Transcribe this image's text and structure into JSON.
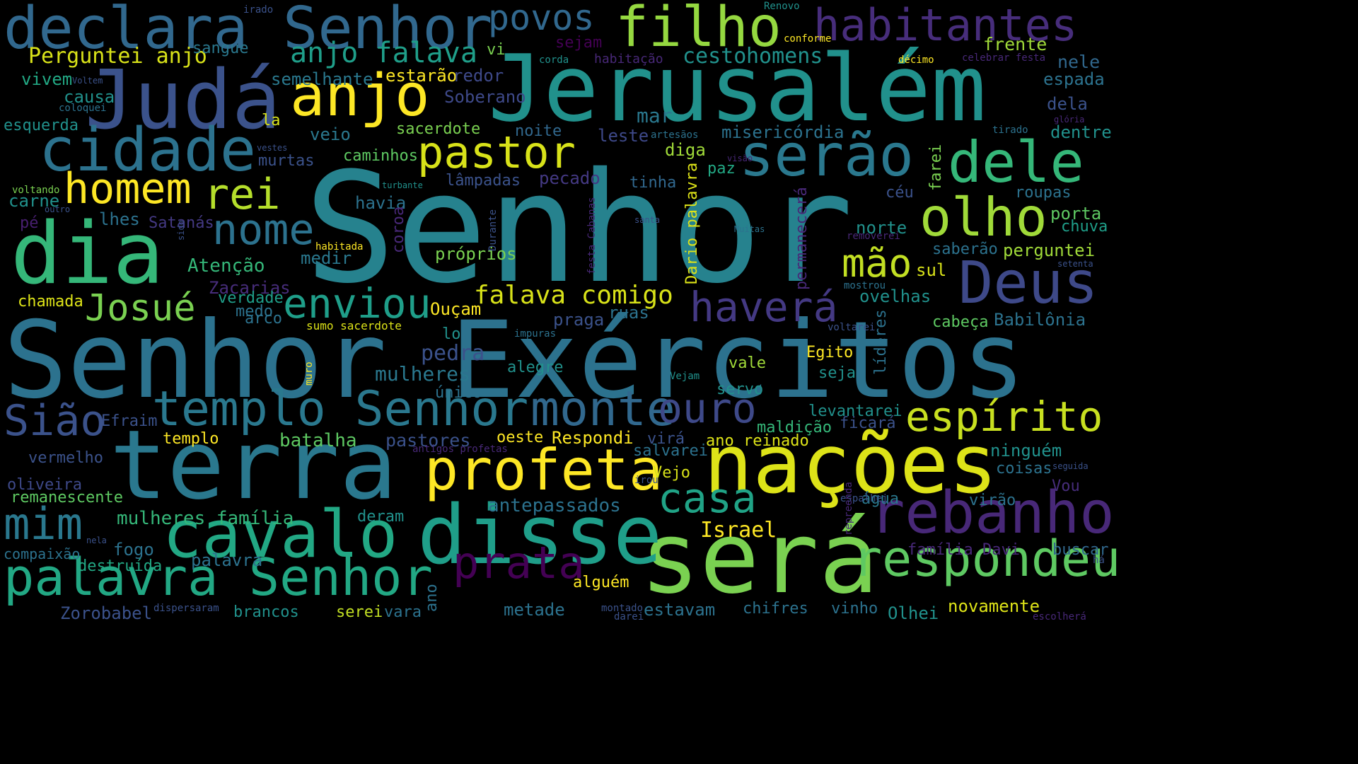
{
  "cloud": {
    "background": "#000000",
    "palette": [
      "#440154",
      "#3b528b",
      "#21918c",
      "#5ec962",
      "#fde725"
    ],
    "words": [
      {
        "text": "Senhor",
        "color": "#26828e"
      },
      {
        "text": "Senhor Exércitos",
        "color": "#2c728e"
      },
      {
        "text": "Jerusalém",
        "color": "#21918c"
      },
      {
        "text": "terra",
        "color": "#2a788e"
      },
      {
        "text": "Judá",
        "color": "#3b528b"
      },
      {
        "text": "nações",
        "color": "#dde318"
      },
      {
        "text": "será",
        "color": "#7ad151"
      },
      {
        "text": "dia",
        "color": "#35b779"
      },
      {
        "text": "disse",
        "color": "#1f9e89"
      },
      {
        "text": "declara Senhor",
        "color": "#31688e"
      },
      {
        "text": "cavalo",
        "color": "#22a884"
      },
      {
        "text": "cidade",
        "color": "#2c728e"
      },
      {
        "text": "filho",
        "color": "#95d840"
      },
      {
        "text": "anjo",
        "color": "#fde725"
      },
      {
        "text": "profeta",
        "color": "#fde725"
      },
      {
        "text": "rebanho",
        "color": "#482878"
      },
      {
        "text": "Deus",
        "color": "#3e4989"
      },
      {
        "text": "serão",
        "color": "#2a788e"
      },
      {
        "text": "dele",
        "color": "#35b779"
      },
      {
        "text": "palavra Senhor",
        "color": "#22a884"
      },
      {
        "text": "respondeu",
        "color": "#5ec962"
      },
      {
        "text": "templo Senhor",
        "color": "#2a788e"
      },
      {
        "text": "monte",
        "color": "#31688e"
      },
      {
        "text": "habitantes",
        "color": "#472d7b"
      },
      {
        "text": "olho",
        "color": "#a0da39"
      },
      {
        "text": "pastor",
        "color": "#d8e219"
      },
      {
        "text": "homem",
        "color": "#fde725"
      },
      {
        "text": "prata",
        "color": "#440154"
      },
      {
        "text": "mim",
        "color": "#2a788e"
      },
      {
        "text": "casa",
        "color": "#20a386"
      },
      {
        "text": "haverá",
        "color": "#443983"
      },
      {
        "text": "enviou",
        "color": "#1f9e89"
      },
      {
        "text": "Sião",
        "color": "#3b528b"
      },
      {
        "text": "nome",
        "color": "#2c728e"
      },
      {
        "text": "rei",
        "color": "#b5de2b"
      },
      {
        "text": "Josué",
        "color": "#7ad151"
      },
      {
        "text": "ouro",
        "color": "#3e4989"
      },
      {
        "text": "espírito",
        "color": "#c8e020"
      },
      {
        "text": "mão",
        "color": "#c2df23"
      },
      {
        "text": "povos",
        "color": "#31688e"
      },
      {
        "text": "anjo falava",
        "color": "#1f9e89"
      },
      {
        "text": "falava comigo",
        "color": "#d8e219"
      },
      {
        "text": "Perguntei anjo",
        "color": "#d8e219"
      },
      {
        "text": "Israel",
        "color": "#fde725"
      },
      {
        "text": "antepassados",
        "color": "#2c728e"
      },
      {
        "text": "batalha",
        "color": "#5ec962"
      },
      {
        "text": "pastores",
        "color": "#3b528b"
      },
      {
        "text": "mulheres",
        "color": "#2a788e"
      },
      {
        "text": "pedra",
        "color": "#3b528b"
      },
      {
        "text": "mulheres família",
        "color": "#35b779"
      },
      {
        "text": "palavra",
        "color": "#2c728e"
      },
      {
        "text": "homens",
        "color": "#21918c"
      },
      {
        "text": "cesto",
        "color": "#21918c"
      },
      {
        "text": "vi",
        "color": "#7ad151"
      },
      {
        "text": "sejam",
        "color": "#440154"
      },
      {
        "text": "sangue",
        "color": "#2a788e"
      },
      {
        "text": "frente",
        "color": "#a0da39"
      },
      {
        "text": "nele",
        "color": "#31688e"
      },
      {
        "text": "espada",
        "color": "#2c728e"
      },
      {
        "text": "vivem",
        "color": "#22a884"
      },
      {
        "text": "semelhante",
        "color": "#2a788e"
      },
      {
        "text": "estarão",
        "color": "#fde725"
      },
      {
        "text": "redor",
        "color": "#3e4989"
      },
      {
        "text": "causa",
        "color": "#21918c"
      },
      {
        "text": "Soberano",
        "color": "#3e4989"
      },
      {
        "text": "mar",
        "color": "#2a788e"
      },
      {
        "text": "misericórdia",
        "color": "#2c728e"
      },
      {
        "text": "dela",
        "color": "#3b528b"
      },
      {
        "text": "dentre",
        "color": "#21918c"
      },
      {
        "text": "esquerda",
        "color": "#21918c"
      },
      {
        "text": "la",
        "color": "#d8e219"
      },
      {
        "text": "veio",
        "color": "#2a788e"
      },
      {
        "text": "sacerdote",
        "color": "#7ad151"
      },
      {
        "text": "noite",
        "color": "#31688e"
      },
      {
        "text": "leste",
        "color": "#3e4989"
      },
      {
        "text": "diga",
        "color": "#a0da39"
      },
      {
        "text": "paz",
        "color": "#22a884"
      },
      {
        "text": "farei",
        "color": "#7ad151"
      },
      {
        "text": "murtas",
        "color": "#3b528b"
      },
      {
        "text": "caminhos",
        "color": "#5ec962"
      },
      {
        "text": "lâmpadas",
        "color": "#3b528b"
      },
      {
        "text": "pecado",
        "color": "#443983"
      },
      {
        "text": "tinha",
        "color": "#31688e"
      },
      {
        "text": "céu",
        "color": "#3b528b"
      },
      {
        "text": "roupas",
        "color": "#2c728e"
      },
      {
        "text": "carne",
        "color": "#21918c"
      },
      {
        "text": "havia",
        "color": "#2c728e"
      },
      {
        "text": "lhes",
        "color": "#2c728e"
      },
      {
        "text": "porta",
        "color": "#5ec962"
      },
      {
        "text": "chuva",
        "color": "#1f9e89"
      },
      {
        "text": "pé",
        "color": "#481f70"
      },
      {
        "text": "Satanás",
        "color": "#443983"
      },
      {
        "text": "norte",
        "color": "#21918c"
      },
      {
        "text": "saberão",
        "color": "#2c728e"
      },
      {
        "text": "perguntei",
        "color": "#a0da39"
      },
      {
        "text": "medir",
        "color": "#2a788e"
      },
      {
        "text": "próprios",
        "color": "#7ad151"
      },
      {
        "text": "sul",
        "color": "#d8e219"
      },
      {
        "text": "Atenção",
        "color": "#35b779"
      },
      {
        "text": "Zacarias",
        "color": "#472d7b"
      },
      {
        "text": "chamada",
        "color": "#dde318"
      },
      {
        "text": "verdade",
        "color": "#1f9e89"
      },
      {
        "text": "medo",
        "color": "#2c728e"
      },
      {
        "text": "arco",
        "color": "#2c728e"
      },
      {
        "text": "praga",
        "color": "#3b528b"
      },
      {
        "text": "ruas",
        "color": "#2c728e"
      },
      {
        "text": "Ouçam",
        "color": "#fde725"
      },
      {
        "text": "ovelhas",
        "color": "#21918c"
      },
      {
        "text": "cabeça",
        "color": "#5ec962"
      },
      {
        "text": "Babilônia",
        "color": "#2c728e"
      },
      {
        "text": "sumo sacerdote",
        "color": "#dde318"
      },
      {
        "text": "lo",
        "color": "#21918c"
      },
      {
        "text": "Egito",
        "color": "#fde725"
      },
      {
        "text": "vale",
        "color": "#a0da39"
      },
      {
        "text": "seja",
        "color": "#21918c"
      },
      {
        "text": "alegre",
        "color": "#21918c"
      },
      {
        "text": "único",
        "color": "#2c728e"
      },
      {
        "text": "servo",
        "color": "#21918c"
      },
      {
        "text": "Efraim",
        "color": "#3b528b"
      },
      {
        "text": "levantarei",
        "color": "#21918c"
      },
      {
        "text": "maldição",
        "color": "#35b779"
      },
      {
        "text": "ficará",
        "color": "#3b528b"
      },
      {
        "text": "templo",
        "color": "#fde725"
      },
      {
        "text": "oeste",
        "color": "#fde725"
      },
      {
        "text": "Respondi",
        "color": "#fde725"
      },
      {
        "text": "ano reinado",
        "color": "#dde318"
      },
      {
        "text": "virá",
        "color": "#3b528b"
      },
      {
        "text": "salvarei",
        "color": "#2c728e"
      },
      {
        "text": "ninguém",
        "color": "#21918c"
      },
      {
        "text": "coisas",
        "color": "#2c728e"
      },
      {
        "text": "vermelho",
        "color": "#3b528b"
      },
      {
        "text": "oliveira",
        "color": "#3e4989"
      },
      {
        "text": "remanescente",
        "color": "#5ec962"
      },
      {
        "text": "Vejo",
        "color": "#d8e219"
      },
      {
        "text": "água",
        "color": "#2a788e"
      },
      {
        "text": "virão",
        "color": "#2c728e"
      },
      {
        "text": "Vou",
        "color": "#472d7b"
      },
      {
        "text": "compaixão",
        "color": "#2c728e"
      },
      {
        "text": "fogo",
        "color": "#2c728e"
      },
      {
        "text": "deram",
        "color": "#21918c"
      },
      {
        "text": "destruída",
        "color": "#22a884"
      },
      {
        "text": "Zorobabel",
        "color": "#3b528b"
      },
      {
        "text": "brancos",
        "color": "#21918c"
      },
      {
        "text": "serei",
        "color": "#c2df23"
      },
      {
        "text": "vara",
        "color": "#2c728e"
      },
      {
        "text": "metade",
        "color": "#2c728e"
      },
      {
        "text": "alguém",
        "color": "#fde725"
      },
      {
        "text": "estavam",
        "color": "#2c728e"
      },
      {
        "text": "chifres",
        "color": "#2c728e"
      },
      {
        "text": "vinho",
        "color": "#2c728e"
      },
      {
        "text": "Olhei",
        "color": "#21918c"
      },
      {
        "text": "novamente",
        "color": "#dde318"
      },
      {
        "text": "buscar",
        "color": "#31688e"
      },
      {
        "text": "família Davi",
        "color": "#482878"
      },
      {
        "text": "antigos profetas",
        "color": "#482878"
      },
      {
        "text": "irado",
        "color": "#3b528b"
      },
      {
        "text": "Renovo",
        "color": "#21918c"
      },
      {
        "text": "conforme",
        "color": "#fde725"
      },
      {
        "text": "habitação",
        "color": "#482878"
      },
      {
        "text": "corda",
        "color": "#21918c"
      },
      {
        "text": "décimo",
        "color": "#fde725"
      },
      {
        "text": "celebrar festa",
        "color": "#482878"
      },
      {
        "text": "Voltem",
        "color": "#3b528b"
      },
      {
        "text": "coloquei",
        "color": "#2c728e"
      },
      {
        "text": "glória",
        "color": "#482878"
      },
      {
        "text": "tirado",
        "color": "#2c728e"
      },
      {
        "text": "artesãos",
        "color": "#2c728e"
      },
      {
        "text": "vestes",
        "color": "#3b528b"
      },
      {
        "text": "visão",
        "color": "#482878"
      },
      {
        "text": "voltando",
        "color": "#7ad151"
      },
      {
        "text": "turbante",
        "color": "#21918c"
      },
      {
        "text": "outro",
        "color": "#3b528b"
      },
      {
        "text": "santa",
        "color": "#3b528b"
      },
      {
        "text": "Muitas",
        "color": "#2c728e"
      },
      {
        "text": "removerei",
        "color": "#482878"
      },
      {
        "text": "setenta",
        "color": "#3b528b"
      },
      {
        "text": "habitada",
        "color": "#fde725"
      },
      {
        "text": "mostrou",
        "color": "#2c728e"
      },
      {
        "text": "impuras",
        "color": "#2c728e"
      },
      {
        "text": "voltarei",
        "color": "#3b528b"
      },
      {
        "text": "Vejam",
        "color": "#21918c"
      },
      {
        "text": "seguida",
        "color": "#3b528b"
      },
      {
        "text": "irou",
        "color": "#3b528b"
      },
      {
        "text": "espalhei",
        "color": "#3b528b"
      },
      {
        "text": "nela",
        "color": "#3b528b"
      },
      {
        "text": "dispersaram",
        "color": "#3b528b"
      },
      {
        "text": "montado",
        "color": "#3b528b"
      },
      {
        "text": "darei",
        "color": "#3b528b"
      },
      {
        "text": "escolherá",
        "color": "#482878"
      },
      {
        "text": "há",
        "color": "#3b528b"
      },
      {
        "text": "sido",
        "color": "#3b528b"
      },
      {
        "text": "coroa",
        "color": "#482878"
      },
      {
        "text": "Durante",
        "color": "#3b528b"
      },
      {
        "text": "festa Cabanas",
        "color": "#482878"
      },
      {
        "text": "Dario palavra",
        "color": "#dde318"
      },
      {
        "text": "permanecerá",
        "color": "#482878"
      },
      {
        "text": "muro",
        "color": "#fde725"
      },
      {
        "text": "ano",
        "color": "#2c728e"
      },
      {
        "text": "líderes",
        "color": "#2c728e"
      },
      {
        "text": "repreenda",
        "color": "#482878"
      }
    ]
  }
}
